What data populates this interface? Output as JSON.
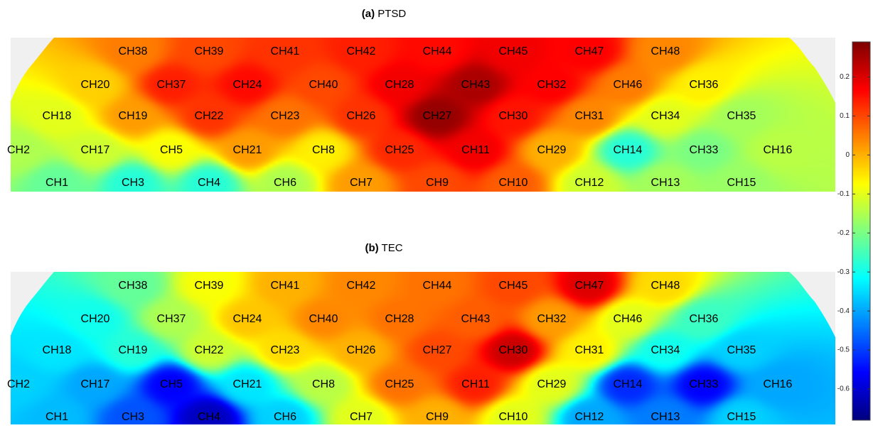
{
  "chart_data": [
    {
      "type": "heatmap",
      "panel": "(a)",
      "title": "PTSD",
      "channels": [
        {
          "ch": "CH38",
          "v": 0.05
        },
        {
          "ch": "CH39",
          "v": 0.1
        },
        {
          "ch": "CH41",
          "v": 0.12
        },
        {
          "ch": "CH42",
          "v": 0.14
        },
        {
          "ch": "CH44",
          "v": 0.16
        },
        {
          "ch": "CH45",
          "v": 0.18
        },
        {
          "ch": "CH47",
          "v": 0.17
        },
        {
          "ch": "CH48",
          "v": 0.04
        },
        {
          "ch": "CH20",
          "v": -0.03
        },
        {
          "ch": "CH37",
          "v": 0.14
        },
        {
          "ch": "CH24",
          "v": 0.16
        },
        {
          "ch": "CH40",
          "v": 0.1
        },
        {
          "ch": "CH28",
          "v": 0.18
        },
        {
          "ch": "CH43",
          "v": 0.25
        },
        {
          "ch": "CH32",
          "v": 0.17
        },
        {
          "ch": "CH46",
          "v": 0.05
        },
        {
          "ch": "CH36",
          "v": -0.06
        },
        {
          "ch": "CH18",
          "v": -0.1
        },
        {
          "ch": "CH19",
          "v": 0.02
        },
        {
          "ch": "CH22",
          "v": 0.12
        },
        {
          "ch": "CH23",
          "v": 0.06
        },
        {
          "ch": "CH26",
          "v": 0.12
        },
        {
          "ch": "CH27",
          "v": 0.27
        },
        {
          "ch": "CH30",
          "v": 0.15
        },
        {
          "ch": "CH31",
          "v": 0.04
        },
        {
          "ch": "CH34",
          "v": -0.1
        },
        {
          "ch": "CH35",
          "v": -0.16
        },
        {
          "ch": "CH2",
          "v": -0.15
        },
        {
          "ch": "CH17",
          "v": -0.12
        },
        {
          "ch": "CH5",
          "v": -0.08
        },
        {
          "ch": "CH21",
          "v": 0.02
        },
        {
          "ch": "CH8",
          "v": -0.06
        },
        {
          "ch": "CH25",
          "v": 0.13
        },
        {
          "ch": "CH11",
          "v": 0.18
        },
        {
          "ch": "CH29",
          "v": 0.0
        },
        {
          "ch": "CH14",
          "v": -0.28
        },
        {
          "ch": "CH33",
          "v": -0.2
        },
        {
          "ch": "CH16",
          "v": -0.14
        },
        {
          "ch": "CH1",
          "v": -0.22
        },
        {
          "ch": "CH3",
          "v": -0.28
        },
        {
          "ch": "CH4",
          "v": -0.28
        },
        {
          "ch": "CH6",
          "v": -0.15
        },
        {
          "ch": "CH7",
          "v": 0.02
        },
        {
          "ch": "CH9",
          "v": 0.1
        },
        {
          "ch": "CH10",
          "v": 0.08
        },
        {
          "ch": "CH12",
          "v": -0.12
        },
        {
          "ch": "CH13",
          "v": -0.16
        },
        {
          "ch": "CH15",
          "v": -0.17
        }
      ]
    },
    {
      "type": "heatmap",
      "panel": "(b)",
      "title": "TEC",
      "channels": [
        {
          "ch": "CH38",
          "v": -0.22
        },
        {
          "ch": "CH39",
          "v": -0.08
        },
        {
          "ch": "CH41",
          "v": 0.0
        },
        {
          "ch": "CH42",
          "v": 0.04
        },
        {
          "ch": "CH44",
          "v": 0.06
        },
        {
          "ch": "CH45",
          "v": 0.1
        },
        {
          "ch": "CH47",
          "v": 0.2
        },
        {
          "ch": "CH48",
          "v": -0.04
        },
        {
          "ch": "CH20",
          "v": -0.3
        },
        {
          "ch": "CH37",
          "v": -0.15
        },
        {
          "ch": "CH24",
          "v": -0.02
        },
        {
          "ch": "CH40",
          "v": 0.04
        },
        {
          "ch": "CH28",
          "v": 0.06
        },
        {
          "ch": "CH43",
          "v": 0.08
        },
        {
          "ch": "CH32",
          "v": 0.02
        },
        {
          "ch": "CH46",
          "v": -0.1
        },
        {
          "ch": "CH36",
          "v": -0.26
        },
        {
          "ch": "CH18",
          "v": -0.34
        },
        {
          "ch": "CH19",
          "v": -0.28
        },
        {
          "ch": "CH22",
          "v": -0.12
        },
        {
          "ch": "CH23",
          "v": -0.04
        },
        {
          "ch": "CH26",
          "v": 0.0
        },
        {
          "ch": "CH27",
          "v": 0.1
        },
        {
          "ch": "CH30",
          "v": 0.22
        },
        {
          "ch": "CH31",
          "v": -0.06
        },
        {
          "ch": "CH34",
          "v": -0.3
        },
        {
          "ch": "CH35",
          "v": -0.36
        },
        {
          "ch": "CH2",
          "v": -0.36
        },
        {
          "ch": "CH17",
          "v": -0.4
        },
        {
          "ch": "CH5",
          "v": -0.56
        },
        {
          "ch": "CH21",
          "v": -0.34
        },
        {
          "ch": "CH8",
          "v": -0.14
        },
        {
          "ch": "CH25",
          "v": 0.06
        },
        {
          "ch": "CH11",
          "v": 0.14
        },
        {
          "ch": "CH29",
          "v": -0.1
        },
        {
          "ch": "CH14",
          "v": -0.52
        },
        {
          "ch": "CH33",
          "v": -0.56
        },
        {
          "ch": "CH16",
          "v": -0.4
        },
        {
          "ch": "CH1",
          "v": -0.38
        },
        {
          "ch": "CH3",
          "v": -0.48
        },
        {
          "ch": "CH4",
          "v": -0.62
        },
        {
          "ch": "CH6",
          "v": -0.36
        },
        {
          "ch": "CH7",
          "v": -0.1
        },
        {
          "ch": "CH9",
          "v": 0.0
        },
        {
          "ch": "CH10",
          "v": -0.1
        },
        {
          "ch": "CH12",
          "v": -0.4
        },
        {
          "ch": "CH13",
          "v": -0.44
        },
        {
          "ch": "CH15",
          "v": -0.36
        }
      ]
    }
  ],
  "colorbar": {
    "colormap": "jet",
    "range": [
      -0.68,
      0.29
    ],
    "ticks": [
      0.2,
      0.1,
      0,
      -0.1,
      -0.2,
      -0.3,
      -0.4,
      -0.5,
      -0.6
    ],
    "tick_labels": [
      "0.2",
      "0.1",
      "0",
      "-0.1",
      "-0.2",
      "-0.3",
      "-0.4",
      "-0.5",
      "-0.6"
    ]
  },
  "background_color": "#f0f0f0"
}
